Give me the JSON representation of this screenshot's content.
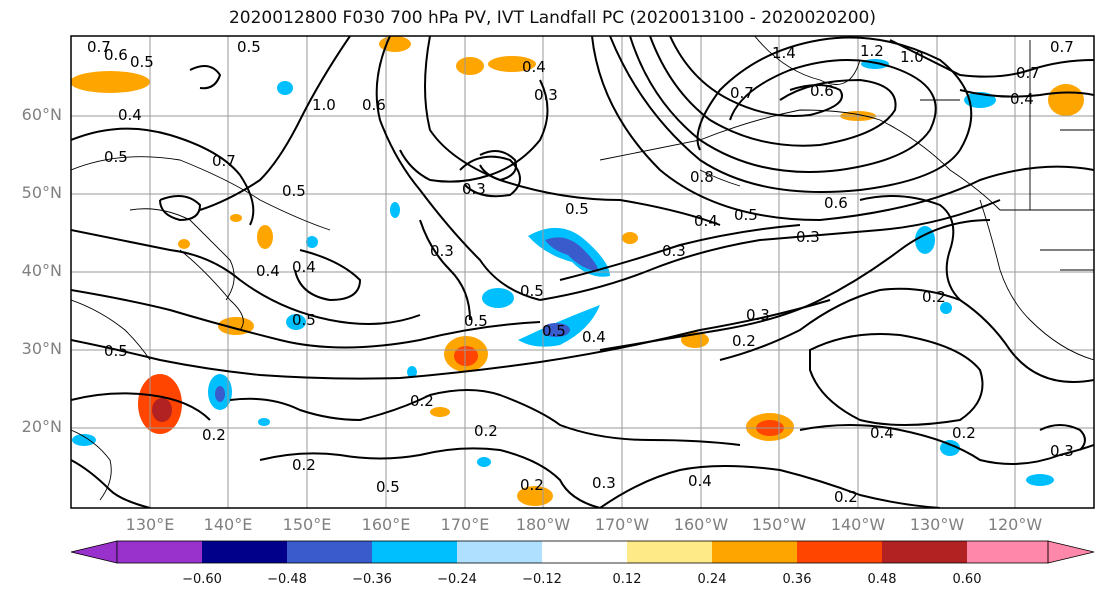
{
  "title": "2020012800 F030 700 hPa PV, IVT Landfall PC (2020013100 - 2020020200)",
  "lat_labels": [
    "60°N",
    "50°N",
    "40°N",
    "30°N",
    "20°N"
  ],
  "lon_labels": [
    "130°E",
    "140°E",
    "150°E",
    "160°E",
    "170°E",
    "180°W",
    "170°W",
    "160°W",
    "150°W",
    "140°W",
    "130°W",
    "120°W"
  ],
  "colorbar": {
    "ticks": [
      "−0.60",
      "−0.48",
      "−0.36",
      "−0.24",
      "−0.12",
      "0.12",
      "0.24",
      "0.36",
      "0.48",
      "0.60"
    ],
    "colors": [
      "#9932cc",
      "#00008b",
      "#3a5bcc",
      "#00bfff",
      "#b0e0ff",
      "#ffffff",
      "#ffea88",
      "#ffa500",
      "#ff4500",
      "#b22222",
      "#ff88aa"
    ]
  },
  "contour_labels": [
    "0.7",
    "0.6",
    "0.5",
    "0.4",
    "0.5",
    "1.0",
    "0.6",
    "0.5",
    "0.3",
    "0.4",
    "1.4",
    "1.2",
    "1.0",
    "0.7",
    "0.7",
    "0.4",
    "0.6",
    "0.5",
    "0.5",
    "0.7",
    "0.3",
    "0.8",
    "0.5",
    "0.6",
    "0.4",
    "0.5",
    "0.5",
    "0.4",
    "0.3",
    "0.3",
    "0.5",
    "0.2",
    "0.4",
    "0.3",
    "0.5",
    "0.5",
    "0.4",
    "0.3",
    "0.2",
    "0.2",
    "0.2",
    "0.2",
    "0.2",
    "0.3",
    "0.4",
    "0.4",
    "0.2",
    "0.3",
    "0.2",
    "0.2",
    "0.7",
    "0.5"
  ],
  "shading_levels": "PV shaded by IVT landfall principal component"
}
